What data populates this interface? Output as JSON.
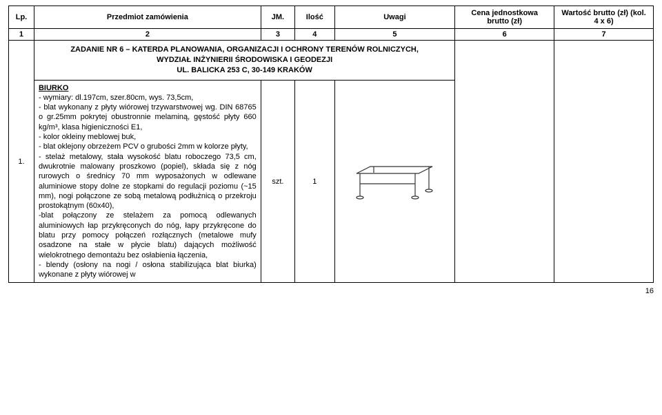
{
  "headers": {
    "lp": "Lp.",
    "item": "Przedmiot zamówienia",
    "jm": "JM.",
    "qty": "Ilość",
    "notes": "Uwagi",
    "unitPrice": "Cena jednostkowa brutto (zł)",
    "totalPrice": "Wartość brutto (zł) (kol. 4 x 6)"
  },
  "colNums": [
    "1",
    "2",
    "3",
    "4",
    "5",
    "6",
    "7"
  ],
  "taskHeader": {
    "line1": "ZADANIE NR 6 – KATERDA PLANOWANIA, ORGANIZACJI I OCHRONY TERENÓW ROLNICZYCH,",
    "line2": "WYDZIAŁ INŻYNIERII ŚRODOWISKA I GEODEZJI",
    "line3": "UL. BALICKA 253 C, 30-149 KRAKÓW"
  },
  "row": {
    "lp": "1.",
    "itemTitle": "BIURKO",
    "itemBody": "- wymiary: dl.197cm, szer.80cm, wys. 73,5cm,\n- blat wykonany z płyty wiórowej trzywarstwowej wg. DIN 68765 o gr.25mm pokrytej obustronnie melaminą, gęstość płyty 660 kg/m³, klasa higieniczności E1,\n- kolor okleiny meblowej buk,\n- blat oklejony obrzeżem PCV o grubości 2mm w kolorze płyty,\n- stelaż metalowy, stała wysokość blatu roboczego 73,5 cm, dwukrotnie malowany proszkowo (popiel), składa się z nóg rurowych o średnicy 70 mm wyposażonych w odlewane aluminiowe stopy dolne ze stopkami do regulacji poziomu (~15 mm), nogi połączone ze sobą metalową podłużnicą o przekroju prostokątnym (60x40),\n-blat połączony ze stelażem za pomocą odlewanych aluminiowych łap przykręconych do nóg, łapy przykręcone do  blatu przy pomocy połączeń rozłącznych (metalowe mufy osadzone na stałe w płycie blatu) dających możliwość wielokrotnego demontażu bez osłabienia łączenia,\n- blendy (osłony na nogi / osłona stabilizująca blat biurka) wykonane z płyty wiórowej w",
    "jm": "szt.",
    "qty": "1",
    "unitPrice": "",
    "totalPrice": ""
  },
  "pageNumber": "16",
  "style": {
    "deskStroke": "#333333",
    "deskFill": "#ffffff"
  }
}
